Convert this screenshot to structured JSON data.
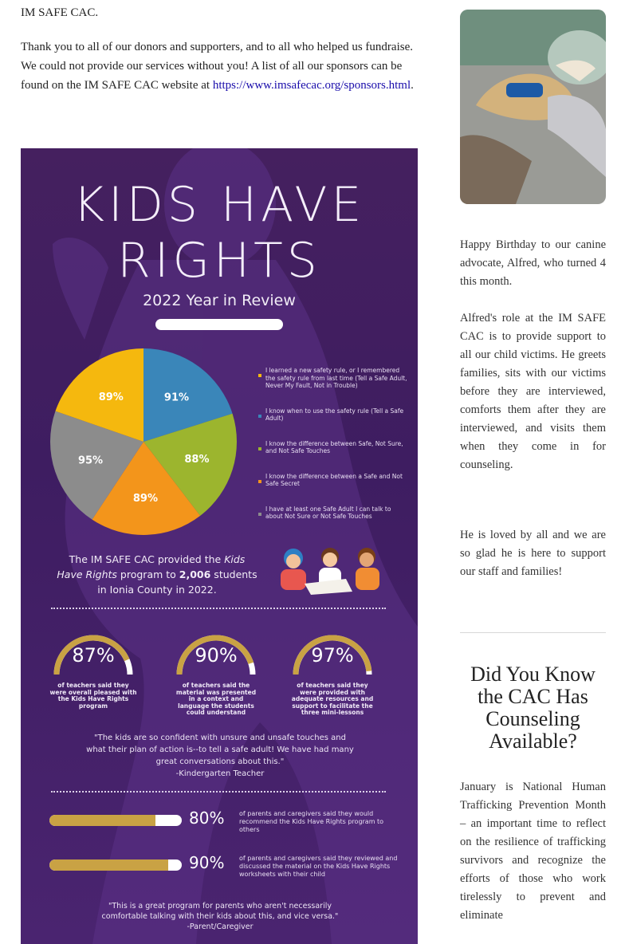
{
  "intro": {
    "line1": "IM SAFE CAC.",
    "thanks": "Thank you to all of our donors and supporters, and to all who helped us fundraise. We could not provide our services without you! A list of all our sponsors can be found on the IM SAFE CAC website at ",
    "link": "https://www.imsafecac.org/sponsors.html",
    "link_suffix": "."
  },
  "infographic": {
    "title_line1": "KIDS HAVE",
    "title_line2": "RIGHTS",
    "subtitle": "2022 Year in Review",
    "chart_data": {
      "type": "pie",
      "title": "",
      "slices": [
        {
          "value": 91,
          "label": "91%",
          "color": "#3a86b9",
          "legend": "I know when to use the safety rule (Tell a Safe Adult)"
        },
        {
          "value": 88,
          "label": "88%",
          "color": "#9cb52e",
          "legend": "I know the difference between Safe, Not Sure, and Not Safe Touches"
        },
        {
          "value": 89,
          "label": "89%",
          "color": "#f3951b",
          "legend": "I know the difference between a Safe and Not Safe Secret"
        },
        {
          "value": 95,
          "label": "95%",
          "color": "#8c8c8c",
          "legend": "I have at least one Safe Adult I can talk to about Not Sure or Not Safe Touches"
        },
        {
          "value": 89,
          "label": "89%",
          "color": "#f5b80e",
          "legend": "I learned a new safety rule, or I remembered the safety rule from last time (Tell a Safe Adult, Never My Fault, Not in Trouble)"
        }
      ],
      "legend_order": [
        4,
        0,
        1,
        2,
        3
      ],
      "legend_placement": "right"
    },
    "provided": {
      "before": "The IM SAFE CAC provided the ",
      "program": "Kids Have Rights",
      "middle": " program to ",
      "count": "2,006",
      "after": " students in Ionia County in 2022."
    },
    "gauges": [
      {
        "percent": 87,
        "label": "87%",
        "desc": "of teachers said they were overall pleased with the Kids Have Rights program"
      },
      {
        "percent": 90,
        "label": "90%",
        "desc": "of teachers said the material was presented in a context and language the students could understand"
      },
      {
        "percent": 97,
        "label": "97%",
        "desc": "of teachers said they were provided with adequate resources and support to facilitate the three mini-lessons"
      }
    ],
    "gauge_color": "#c9a244",
    "quote1": "\"The kids are so confident with unsure and unsafe touches and what their plan of action is--to tell a safe adult! We have had many great conversations about this.\"",
    "quote1_author": "-Kindergarten Teacher",
    "bars": [
      {
        "percent": 80,
        "label": "80%",
        "desc": "of parents and caregivers said they would recommend the Kids Have Rights program to others"
      },
      {
        "percent": 90,
        "label": "90%",
        "desc": "of parents and caregivers said they reviewed and discussed the material on the Kids Have Rights worksheets with their child"
      }
    ],
    "quote2": "\"This is a great program for parents who aren't necessarily comfortable talking with their kids about this, and vice versa.\"",
    "quote2_author": "-Parent/Caregiver"
  },
  "sidebar": {
    "birthday": "Happy Birthday to our canine advocate, Alfred, who turned 4 this month.",
    "role": "Alfred's role at the IM SAFE CAC is to provide support to all our child victims. He greets families, sits with our victims before they are interviewed, comforts them after they are interviewed, and visits them when they come in for counseling.",
    "loved": "He is loved by all and we are so glad he is here to support our staff and families!",
    "heading": "Did You Know the CAC Has Counseling Available?",
    "january": "January is National Human Trafficking Prevention Month – an important time to reflect on the resilience of trafficking survivors and recognize the efforts of those who work tirelessly to prevent and eliminate"
  }
}
